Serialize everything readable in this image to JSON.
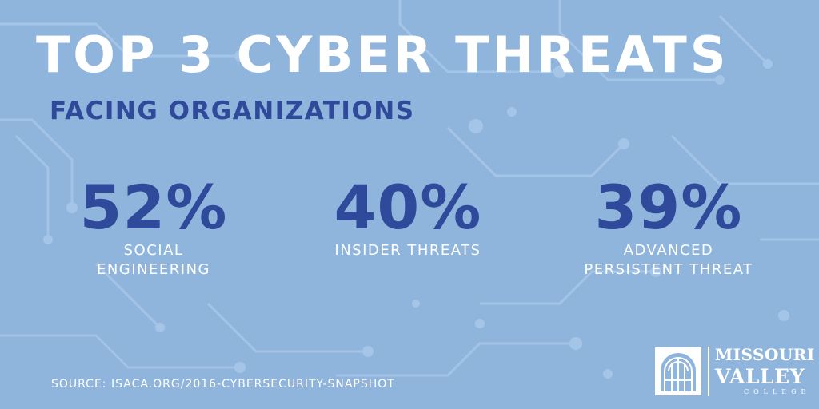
{
  "title": "TOP 3 CYBER THREATS",
  "subtitle": "FACING ORGANIZATIONS",
  "stats": [
    {
      "value": "52%",
      "label": "SOCIAL ENGINEERING"
    },
    {
      "value": "40%",
      "label": "INSIDER THREATS"
    },
    {
      "value": "39%",
      "label": "ADVANCED PERSISTENT THREAT"
    }
  ],
  "source": "SOURCE: ISACA.ORG/2016-CYBERSECURITY-SNAPSHOT",
  "logo": {
    "line1": "MISSOURI",
    "line2": "VALLEY",
    "line3": "COLLEGE"
  },
  "colors": {
    "background": "#90b5dd",
    "title": "#ffffff",
    "accent": "#2f4a9a",
    "circuit": "#a6c6e8"
  }
}
